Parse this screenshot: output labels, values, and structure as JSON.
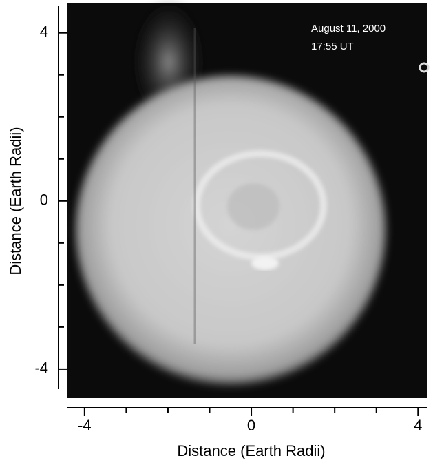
{
  "chart_data": {
    "type": "image",
    "annotations": [
      "August 11, 2000",
      "17:55 UT"
    ],
    "x_label": "Distance (Earth Radii)",
    "y_label": "Distance (Earth Radii)",
    "xlim": [
      -4.41,
      4.21
    ],
    "ylim": [
      -4.69,
      4.7
    ],
    "xticks": [
      -4,
      0,
      4
    ],
    "yticks": [
      -4,
      0,
      4
    ],
    "xminorticks": [
      -3,
      -2,
      -1,
      1,
      2,
      3
    ],
    "yminorticks": [
      -3,
      -2,
      -1,
      1,
      2,
      3
    ]
  }
}
